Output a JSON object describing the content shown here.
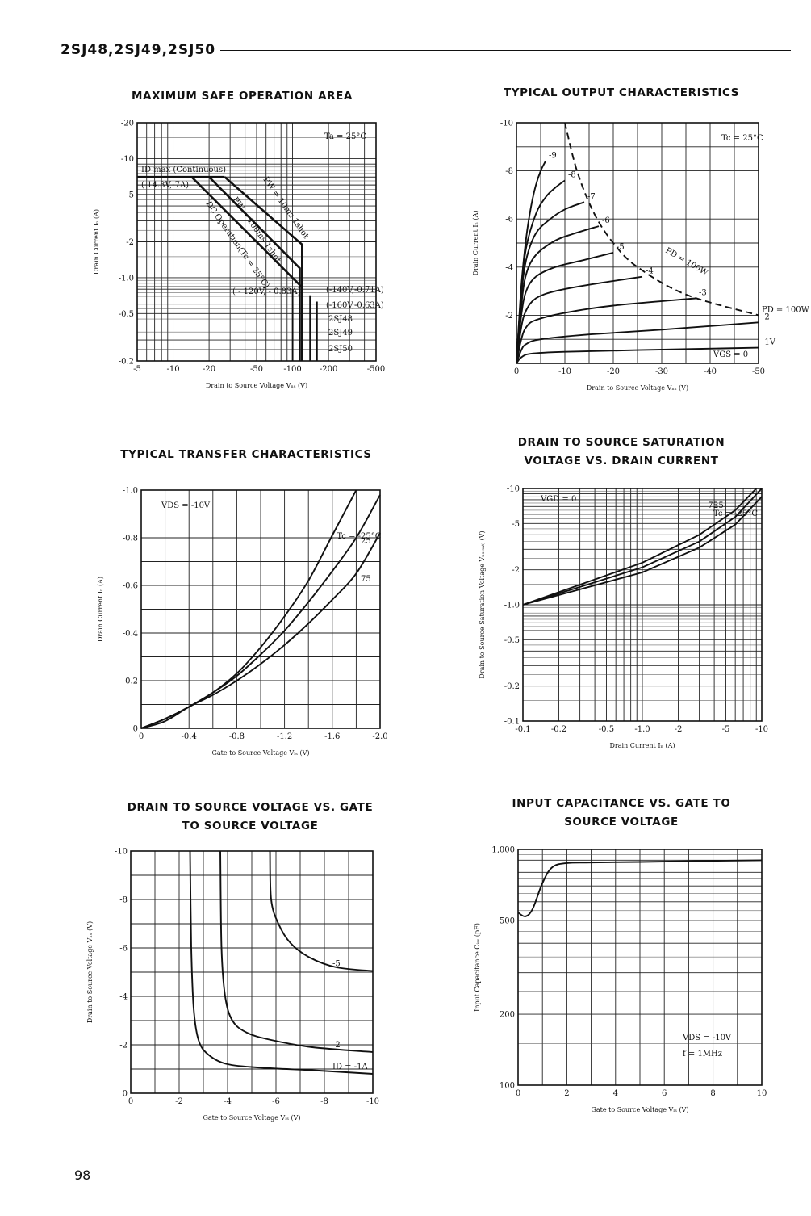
{
  "header": {
    "title": "2SJ48,2SJ49,2SJ50"
  },
  "page_number": "98",
  "chart_data": [
    {
      "id": "safe",
      "type": "line",
      "title": "MAXIMUM SAFE OPERATION AREA",
      "xlabel": "Drain to Source Voltage  Vₙₛ (V)",
      "ylabel": "Drain Current  Iₙ (A)",
      "xscale": "log",
      "yscale": "log",
      "xlim": [
        -5,
        -500
      ],
      "ylim": [
        -0.2,
        -20
      ],
      "xticks": [
        "-5",
        "-10",
        "-20",
        "-50",
        "-100",
        "-200",
        "-500"
      ],
      "yticks": [
        "-20",
        "-10",
        "-5",
        "-2",
        "-1.0",
        "-0.5",
        "-0.2"
      ],
      "annotations": [
        "Ta = 25°C",
        "ID max (Continuous)",
        "(-14.3V,-7A)",
        "( - 120V, - 0.83A)",
        "(-140V,-0.71A)",
        "(-160V,-0.63A)",
        "2SJ48",
        "2SJ49",
        "2SJ50",
        "PW = 10ms 1shot",
        "PW = 100ms 1shot",
        "DC Operation(Tc = 25°C)"
      ],
      "series": [
        {
          "name": "ID max (Continuous)",
          "x": [
            -5,
            -27
          ],
          "y": [
            -7,
            -7
          ]
        },
        {
          "name": "PW = 10ms 1shot",
          "x": [
            -27,
            -120,
            -120
          ],
          "y": [
            -7,
            -1.9,
            -0.2
          ]
        },
        {
          "name": "PW = 100ms 1shot",
          "x": [
            -20,
            -115,
            -115
          ],
          "y": [
            -7,
            -1.2,
            -0.2
          ]
        },
        {
          "name": "DC Operation(Tc = 25°C)",
          "x": [
            -14.3,
            -120,
            -120
          ],
          "y": [
            -7,
            -0.83,
            -0.2
          ]
        },
        {
          "name": "2SJ48",
          "x": [
            -140,
            -140
          ],
          "y": [
            -0.71,
            -0.2
          ]
        },
        {
          "name": "2SJ49",
          "x": [
            -100,
            -100
          ],
          "y": [
            -0.8,
            -0.2
          ]
        },
        {
          "name": "2SJ50",
          "x": [
            -160,
            -160
          ],
          "y": [
            -0.63,
            -0.2
          ]
        }
      ]
    },
    {
      "id": "output",
      "type": "line",
      "title": "TYPICAL OUTPUT CHARACTERISTICS",
      "xlabel": "Drain to Source Voltage  Vₙₛ (V)",
      "ylabel": "Drain Current  Iₙ (A)",
      "xlim": [
        0,
        -50
      ],
      "ylim": [
        0,
        -10
      ],
      "xticks": [
        "0",
        "-10",
        "-20",
        "-30",
        "-40",
        "-50"
      ],
      "yticks": [
        "-10",
        "-8",
        "-6",
        "-4",
        "-2"
      ],
      "annotations": [
        "Tc = 25°C",
        "PD = 100W",
        "VGS = 0"
      ],
      "series": [
        {
          "name": "-9",
          "x": [
            0,
            -1,
            -2,
            -3,
            -4,
            -5,
            -6
          ],
          "y": [
            0,
            -3.2,
            -5.2,
            -6.5,
            -7.4,
            -8.0,
            -8.4
          ]
        },
        {
          "name": "-8",
          "x": [
            0,
            -1,
            -2,
            -4,
            -6,
            -8,
            -10
          ],
          "y": [
            0,
            -3.0,
            -4.8,
            -6.2,
            -6.9,
            -7.3,
            -7.6
          ]
        },
        {
          "name": "-7",
          "x": [
            0,
            -1,
            -2,
            -4,
            -7,
            -10,
            -14
          ],
          "y": [
            0,
            -2.8,
            -4.3,
            -5.4,
            -6.0,
            -6.4,
            -6.7
          ]
        },
        {
          "name": "-6",
          "x": [
            0,
            -1,
            -2,
            -4,
            -8,
            -12,
            -17
          ],
          "y": [
            0,
            -2.4,
            -3.7,
            -4.5,
            -5.1,
            -5.4,
            -5.7
          ]
        },
        {
          "name": "-5",
          "x": [
            0,
            -1,
            -2,
            -4,
            -8,
            -14,
            -20
          ],
          "y": [
            0,
            -2.0,
            -3.0,
            -3.6,
            -4.0,
            -4.3,
            -4.6
          ]
        },
        {
          "name": "-4",
          "x": [
            0,
            -1,
            -2,
            -4,
            -8,
            -16,
            -26
          ],
          "y": [
            0,
            -1.5,
            -2.2,
            -2.7,
            -3.0,
            -3.3,
            -3.6
          ]
        },
        {
          "name": "-3",
          "x": [
            0,
            -1,
            -2,
            -4,
            -10,
            -20,
            -37
          ],
          "y": [
            0,
            -1.0,
            -1.5,
            -1.8,
            -2.1,
            -2.4,
            -2.7
          ]
        },
        {
          "name": "-2",
          "x": [
            0,
            -1,
            -2,
            -5,
            -15,
            -30,
            -50
          ],
          "y": [
            0,
            -0.55,
            -0.8,
            -1.0,
            -1.2,
            -1.4,
            -1.7
          ]
        },
        {
          "name": "-1V",
          "x": [
            0,
            -1,
            -3,
            -10,
            -25,
            -50
          ],
          "y": [
            0,
            -0.25,
            -0.4,
            -0.48,
            -0.55,
            -0.65
          ]
        },
        {
          "name": "PD = 100W",
          "x": [
            -10,
            -12.5,
            -16,
            -20,
            -25,
            -35,
            -50
          ],
          "y": [
            -10,
            -8,
            -6.25,
            -5,
            -4,
            -2.86,
            -2
          ]
        }
      ]
    },
    {
      "id": "transfer",
      "type": "line",
      "title": "TYPICAL TRANSFER CHARACTERISTICS",
      "xlabel": "Gate to Source Voltage  Vₗₛ (V)",
      "ylabel": "Drain Current  Iₙ (A)",
      "xlim": [
        0,
        -2.0
      ],
      "ylim": [
        0,
        -1.0
      ],
      "xticks": [
        "0",
        "-0.4",
        "-0.8",
        "-1.2",
        "-1.6",
        "-2.0"
      ],
      "yticks": [
        "-1.0",
        "-0.8",
        "-0.6",
        "-0.4",
        "-0.2",
        "0"
      ],
      "annotations": [
        "VDS = -10V"
      ],
      "series": [
        {
          "name": "Tc = -25°C",
          "x": [
            0,
            -0.2,
            -0.4,
            -0.6,
            -0.8,
            -1.0,
            -1.2,
            -1.4,
            -1.6,
            -1.8
          ],
          "y": [
            0,
            -0.04,
            -0.09,
            -0.15,
            -0.23,
            -0.34,
            -0.47,
            -0.62,
            -0.81,
            -1.0
          ]
        },
        {
          "name": "25",
          "x": [
            0,
            -0.2,
            -0.4,
            -0.6,
            -0.8,
            -1.0,
            -1.2,
            -1.4,
            -1.6,
            -1.8,
            -2.0
          ],
          "y": [
            0,
            -0.04,
            -0.09,
            -0.15,
            -0.22,
            -0.31,
            -0.41,
            -0.53,
            -0.66,
            -0.8,
            -0.98
          ]
        },
        {
          "name": "75",
          "x": [
            0,
            -0.2,
            -0.4,
            -0.6,
            -0.8,
            -1.0,
            -1.2,
            -1.4,
            -1.6,
            -1.8,
            -2.0
          ],
          "y": [
            0,
            -0.03,
            -0.09,
            -0.14,
            -0.2,
            -0.27,
            -0.35,
            -0.44,
            -0.54,
            -0.65,
            -0.82
          ]
        }
      ]
    },
    {
      "id": "saturation",
      "type": "line",
      "title": "DRAIN TO SOURCE SATURATION VOLTAGE VS. DRAIN CURRENT",
      "xlabel": "Drain Current  Iₙ (A)",
      "ylabel": "Drain to Source Saturation Voltage  Vₙₛ₍ₛₐₜ₎ (V)",
      "xscale": "log",
      "yscale": "log",
      "xlim": [
        -0.1,
        -10
      ],
      "ylim": [
        -0.1,
        -10
      ],
      "xticks": [
        "-0.1",
        "-0.2",
        "-0.5",
        "-1.0",
        "-2",
        "-5",
        "-10"
      ],
      "yticks": [
        "-10",
        "-5",
        "-2",
        "-1.0",
        "-0.5",
        "-0.2",
        "-0.1"
      ],
      "annotations": [
        "VGD = 0"
      ],
      "series": [
        {
          "name": "75",
          "x": [
            -0.1,
            -1.0,
            -3,
            -6,
            -9
          ],
          "y": [
            -1.0,
            -2.3,
            -4.0,
            -6.5,
            -10
          ]
        },
        {
          "name": "25",
          "x": [
            -0.1,
            -1.0,
            -3,
            -6,
            -10
          ],
          "y": [
            -1.0,
            -2.1,
            -3.5,
            -5.7,
            -10
          ]
        },
        {
          "name": "Tc = -25°C",
          "x": [
            -0.1,
            -1.0,
            -3,
            -6,
            -10
          ],
          "y": [
            -1.0,
            -1.9,
            -3.1,
            -4.9,
            -8.5
          ]
        }
      ]
    },
    {
      "id": "vdsvgs",
      "type": "line",
      "title": "DRAIN TO SOURCE VOLTAGE VS. GATE TO SOURCE VOLTAGE",
      "xlabel": "Gate to Source Voltage  Vₗₛ (V)",
      "ylabel": "Drain to Source Voltage  Vₙₛ (V)",
      "xlim": [
        0,
        -10
      ],
      "ylim": [
        0,
        -10
      ],
      "xticks": [
        "0",
        "-2",
        "-4",
        "-6",
        "-8",
        "-10"
      ],
      "yticks": [
        "-10",
        "-8",
        "-6",
        "-4",
        "-2",
        "0"
      ],
      "series": [
        {
          "name": "ID = -1A",
          "x": [
            -2.45,
            -2.5,
            -2.6,
            -2.8,
            -3.2,
            -4,
            -5.5,
            -7.5,
            -10
          ],
          "y": [
            -10,
            -6,
            -3.5,
            -2.2,
            -1.6,
            -1.2,
            -1.05,
            -0.95,
            -0.8
          ]
        },
        {
          "name": "-2",
          "x": [
            -3.7,
            -3.75,
            -3.9,
            -4.2,
            -4.8,
            -5.8,
            -7.5,
            -10
          ],
          "y": [
            -10,
            -6,
            -4,
            -3,
            -2.5,
            -2.2,
            -1.9,
            -1.7
          ]
        },
        {
          "name": "-5",
          "x": [
            -5.75,
            -5.8,
            -6.1,
            -6.6,
            -7.4,
            -8.5,
            -10
          ],
          "y": [
            -10,
            -8,
            -7,
            -6.2,
            -5.6,
            -5.2,
            -5.05
          ]
        }
      ]
    },
    {
      "id": "capacitance",
      "type": "line",
      "title": "INPUT CAPACITANCE VS. GATE TO SOURCE VOLTAGE",
      "xlabel": "Gate to Source Voltage  Vₗₛ (V)",
      "ylabel": "Input Capacitance  Cᵢₛₛ (pF)",
      "yscale": "log",
      "xlim": [
        0,
        10
      ],
      "ylim": [
        100,
        1000
      ],
      "xticks": [
        "0",
        "2",
        "4",
        "6",
        "8",
        "10"
      ],
      "yticks": [
        "1,000",
        "500",
        "200",
        "100"
      ],
      "annotations": [
        "VDS = -10V",
        "f = 1MHz"
      ],
      "series": [
        {
          "name": "Ciss",
          "x": [
            0,
            0.3,
            0.6,
            1.0,
            1.4,
            2,
            3,
            5,
            8,
            10
          ],
          "y": [
            540,
            520,
            560,
            720,
            840,
            875,
            880,
            885,
            895,
            900
          ]
        }
      ]
    }
  ]
}
